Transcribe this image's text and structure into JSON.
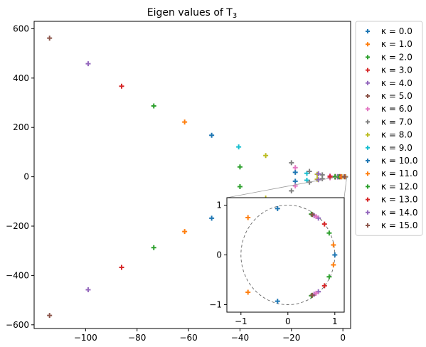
{
  "chart_data": {
    "type": "scatter",
    "title": "Eigen values of T",
    "title_subscript": "3",
    "xlabel": "",
    "ylabel": "",
    "xlim": [
      -120,
      3
    ],
    "ylim": [
      -615,
      630
    ],
    "xticks": [
      -100,
      -80,
      -60,
      -40,
      -20,
      0
    ],
    "yticks": [
      -600,
      -400,
      -200,
      0,
      200,
      400,
      600
    ],
    "grid": false,
    "legend_placement": "outside-right",
    "marker": "plus",
    "series": [
      {
        "name": "κ = 0.0",
        "color": "#1f77b4",
        "points": [
          [
            1.0,
            0.0
          ],
          [
            1.0,
            0.0
          ]
        ]
      },
      {
        "name": "κ = 1.0",
        "color": "#ff7f0e",
        "points": [
          [
            0.8,
            0.2
          ],
          [
            0.8,
            -0.2
          ]
        ]
      },
      {
        "name": "κ = 2.0",
        "color": "#2ca02c",
        "points": [
          [
            -0.5,
            0.6
          ],
          [
            -0.5,
            -0.6
          ]
        ]
      },
      {
        "name": "κ = 3.0",
        "color": "#d62728",
        "points": [
          [
            -1.2,
            0.9
          ],
          [
            -1.2,
            -0.9
          ]
        ]
      },
      {
        "name": "κ = 4.0",
        "color": "#9467bd",
        "points": [
          [
            -2.0,
            1.0
          ],
          [
            -2.0,
            -1.0
          ]
        ]
      },
      {
        "name": "κ = 5.0",
        "color": "#8c564b",
        "points": [
          [
            -3.0,
            1.5
          ],
          [
            -3.0,
            -1.5
          ]
        ]
      },
      {
        "name": "κ = 6.0",
        "color": "#e377c2",
        "points": [
          [
            -5.0,
            4.0
          ],
          [
            -5.0,
            -4.0
          ]
        ]
      },
      {
        "name": "κ = 7.0",
        "color": "#7f7f7f",
        "points": [
          [
            -8.0,
            8.0
          ],
          [
            -8.0,
            -8.0
          ]
        ]
      },
      {
        "name": "κ = 8.0",
        "color": "#bcbd22",
        "points": [
          [
            -10.0,
            10.0
          ],
          [
            -10.0,
            -10.0
          ]
        ]
      },
      {
        "name": "κ = 9.0",
        "color": "#17becf",
        "points": [
          [
            -14.0,
            14.0
          ],
          [
            -14.0,
            -14.0
          ]
        ]
      },
      {
        "name": "κ = 10.0",
        "color": "#1f77b4",
        "points": [
          [
            -18.5,
            18.0
          ],
          [
            -18.5,
            -18.0
          ]
        ]
      },
      {
        "name": "κ = 11.0",
        "color": "#ff7f0e",
        "points": [
          [
            -61.5,
            222.0
          ],
          [
            -61.5,
            -222.0
          ]
        ]
      },
      {
        "name": "κ = 12.0",
        "color": "#2ca02c",
        "points": [
          [
            -73.5,
            287.0
          ],
          [
            -73.5,
            -287.0
          ],
          [
            -40.0,
            40.0
          ],
          [
            -40.0,
            -40.0
          ]
        ]
      },
      {
        "name": "κ = 13.0",
        "color": "#d62728",
        "points": [
          [
            -86.0,
            367.0
          ],
          [
            -86.0,
            -367.0
          ]
        ]
      },
      {
        "name": "κ = 14.0",
        "color": "#9467bd",
        "points": [
          [
            -99.0,
            458.0
          ],
          [
            -99.0,
            -458.0
          ]
        ]
      },
      {
        "name": "κ = 15.0",
        "color": "#8c564b",
        "points": [
          [
            -114.0,
            562.0
          ],
          [
            -114.0,
            -562.0
          ]
        ]
      }
    ],
    "extra_points": [
      {
        "color": "#1f77b4",
        "points": [
          [
            -51.0,
            168.0
          ],
          [
            -51.0,
            -168.0
          ]
        ]
      },
      {
        "color": "#17becf",
        "points": [
          [
            -40.5,
            121.0
          ]
        ]
      },
      {
        "color": "#bcbd22",
        "points": [
          [
            -30.0,
            86.0
          ],
          [
            -30.0,
            -86.0
          ]
        ]
      },
      {
        "color": "#7f7f7f",
        "points": [
          [
            -20.0,
            57.0
          ],
          [
            -20.0,
            -57.0
          ],
          [
            -13.0,
            22.0
          ],
          [
            -13.0,
            -22.0
          ]
        ]
      },
      {
        "color": "#e377c2",
        "points": [
          [
            -18.5,
            37.0
          ],
          [
            -18.5,
            -37.0
          ]
        ]
      },
      {
        "color": "#9467bd",
        "points": [
          [
            -9.5,
            12.0
          ],
          [
            -9.5,
            -12.0
          ]
        ]
      },
      {
        "color": "#2ca02c",
        "points": [
          [
            -3.0,
            0.0
          ],
          [
            -1.5,
            0.0
          ]
        ]
      },
      {
        "color": "#d62728",
        "points": [
          [
            -5.0,
            0.0
          ]
        ]
      },
      {
        "color": "#ff7f0e",
        "points": [
          [
            -0.5,
            0.0
          ]
        ]
      },
      {
        "color": "#8c564b",
        "points": [
          [
            0.5,
            0.0
          ]
        ]
      }
    ],
    "inset": {
      "xlim": [
        -1.3,
        1.2
      ],
      "ylim": [
        -1.15,
        1.15
      ],
      "xticks": [
        -1,
        0,
        1
      ],
      "yticks": [
        -1,
        0,
        1
      ],
      "unit_circle": true,
      "series": [
        {
          "color": "#1f77b4",
          "points": [
            [
              1.0,
              0.0
            ],
            [
              -0.22,
              0.93
            ],
            [
              -0.22,
              -0.93
            ]
          ]
        },
        {
          "color": "#ff7f0e",
          "points": [
            [
              0.97,
              0.2
            ],
            [
              0.97,
              -0.2
            ],
            [
              -0.85,
              0.75
            ],
            [
              -0.85,
              -0.75
            ]
          ]
        },
        {
          "color": "#2ca02c",
          "points": [
            [
              0.88,
              0.44
            ],
            [
              0.88,
              -0.44
            ],
            [
              0.5,
              0.82
            ],
            [
              0.5,
              -0.82
            ]
          ]
        },
        {
          "color": "#d62728",
          "points": [
            [
              0.78,
              0.62
            ],
            [
              0.78,
              -0.62
            ]
          ]
        },
        {
          "color": "#9467bd",
          "points": [
            [
              0.65,
              0.74
            ],
            [
              0.65,
              -0.74
            ],
            [
              0.56,
              0.79
            ],
            [
              0.56,
              -0.79
            ]
          ]
        },
        {
          "color": "#8c564b",
          "points": [
            [
              0.52,
              0.81
            ],
            [
              0.52,
              -0.81
            ]
          ]
        },
        {
          "color": "#e377c2",
          "points": [
            [
              0.6,
              0.77
            ],
            [
              0.6,
              -0.77
            ]
          ]
        }
      ]
    }
  }
}
